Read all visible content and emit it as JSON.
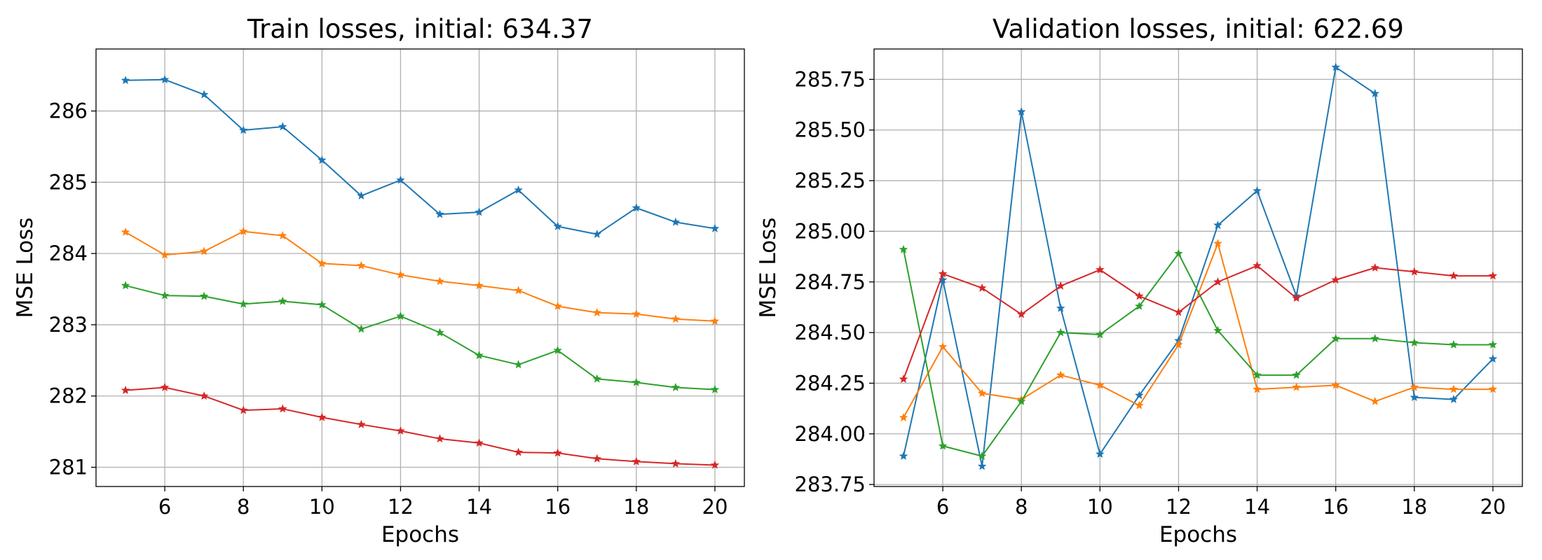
{
  "colors": {
    "blue": "#1f77b4",
    "orange": "#ff7f0e",
    "green": "#2ca02c",
    "red": "#d62728",
    "grid": "#b0b0b0"
  },
  "chart_data": [
    {
      "type": "line",
      "title": "Train losses, initial: 634.37",
      "xlabel": "Epochs",
      "ylabel": "MSE Loss",
      "x": [
        5,
        6,
        7,
        8,
        9,
        10,
        11,
        12,
        13,
        14,
        15,
        16,
        17,
        18,
        19,
        20
      ],
      "xlim": [
        4.25,
        20.75
      ],
      "ylim": [
        280.73,
        286.87
      ],
      "xticks": [
        6,
        8,
        10,
        12,
        14,
        16,
        18,
        20
      ],
      "yticks": [
        281,
        282,
        283,
        284,
        285,
        286
      ],
      "ytick_labels": [
        "281",
        "282",
        "283",
        "284",
        "285",
        "286"
      ],
      "grid": true,
      "marker": "star",
      "series": [
        {
          "color": "#1f77b4",
          "values": [
            286.43,
            286.44,
            286.23,
            285.73,
            285.78,
            285.31,
            284.81,
            285.03,
            284.55,
            284.58,
            284.89,
            284.38,
            284.27,
            284.64,
            284.44,
            284.35
          ]
        },
        {
          "color": "#ff7f0e",
          "values": [
            284.3,
            283.98,
            284.03,
            284.31,
            284.25,
            283.86,
            283.83,
            283.7,
            283.61,
            283.55,
            283.48,
            283.26,
            283.17,
            283.15,
            283.08,
            283.05
          ]
        },
        {
          "color": "#2ca02c",
          "values": [
            283.55,
            283.41,
            283.4,
            283.29,
            283.33,
            283.28,
            282.94,
            283.12,
            282.89,
            282.57,
            282.44,
            282.64,
            282.24,
            282.19,
            282.12,
            282.09
          ]
        },
        {
          "color": "#d62728",
          "values": [
            282.08,
            282.12,
            282.0,
            281.8,
            281.82,
            281.7,
            281.6,
            281.51,
            281.4,
            281.34,
            281.21,
            281.2,
            281.12,
            281.08,
            281.05,
            281.03
          ]
        }
      ]
    },
    {
      "type": "line",
      "title": "Validation losses, initial: 622.69",
      "xlabel": "Epochs",
      "ylabel": "MSE Loss",
      "x": [
        5,
        6,
        7,
        8,
        9,
        10,
        11,
        12,
        13,
        14,
        15,
        16,
        17,
        18,
        19,
        20
      ],
      "xlim": [
        4.25,
        20.75
      ],
      "ylim": [
        283.74,
        285.9
      ],
      "xticks": [
        6,
        8,
        10,
        12,
        14,
        16,
        18,
        20
      ],
      "yticks": [
        283.75,
        284.0,
        284.25,
        284.5,
        284.75,
        285.0,
        285.25,
        285.5,
        285.75
      ],
      "ytick_labels": [
        "283.75",
        "284.00",
        "284.25",
        "284.50",
        "284.75",
        "285.00",
        "285.25",
        "285.50",
        "285.75"
      ],
      "grid": true,
      "marker": "star",
      "series": [
        {
          "color": "#1f77b4",
          "values": [
            283.89,
            284.76,
            283.84,
            285.59,
            284.62,
            283.9,
            284.19,
            284.46,
            285.03,
            285.2,
            284.68,
            285.81,
            285.68,
            284.18,
            284.17,
            284.37
          ]
        },
        {
          "color": "#ff7f0e",
          "values": [
            284.08,
            284.43,
            284.2,
            284.17,
            284.29,
            284.24,
            284.14,
            284.44,
            284.94,
            284.22,
            284.23,
            284.24,
            284.16,
            284.23,
            284.22,
            284.22
          ]
        },
        {
          "color": "#2ca02c",
          "values": [
            284.91,
            283.94,
            283.89,
            284.16,
            284.5,
            284.49,
            284.63,
            284.89,
            284.51,
            284.29,
            284.29,
            284.47,
            284.47,
            284.45,
            284.44,
            284.44
          ]
        },
        {
          "color": "#d62728",
          "values": [
            284.27,
            284.79,
            284.72,
            284.59,
            284.73,
            284.81,
            284.68,
            284.6,
            284.75,
            284.83,
            284.67,
            284.76,
            284.82,
            284.8,
            284.78,
            284.78
          ]
        }
      ]
    }
  ]
}
